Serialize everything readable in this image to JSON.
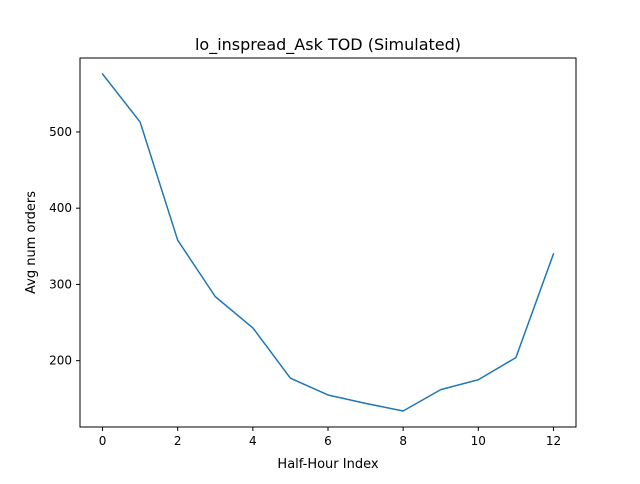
{
  "chart_data": {
    "type": "line",
    "title": "lo_inspread_Ask TOD (Simulated)",
    "xlabel": "Half-Hour Index",
    "ylabel": "Avg num orders",
    "xlim": [
      -0.6,
      12.6
    ],
    "ylim": [
      113,
      597
    ],
    "xticks": [
      0,
      2,
      4,
      6,
      8,
      10,
      12
    ],
    "yticks": [
      200,
      300,
      400,
      500
    ],
    "grid": false,
    "series": [
      {
        "color": "#1f77b4",
        "x": [
          0,
          1,
          2,
          3,
          4,
          5,
          6,
          7,
          8,
          9,
          10,
          11,
          12
        ],
        "values": [
          576,
          513,
          358,
          284,
          243,
          177,
          155,
          144,
          134,
          162,
          175,
          204,
          340
        ]
      }
    ]
  }
}
